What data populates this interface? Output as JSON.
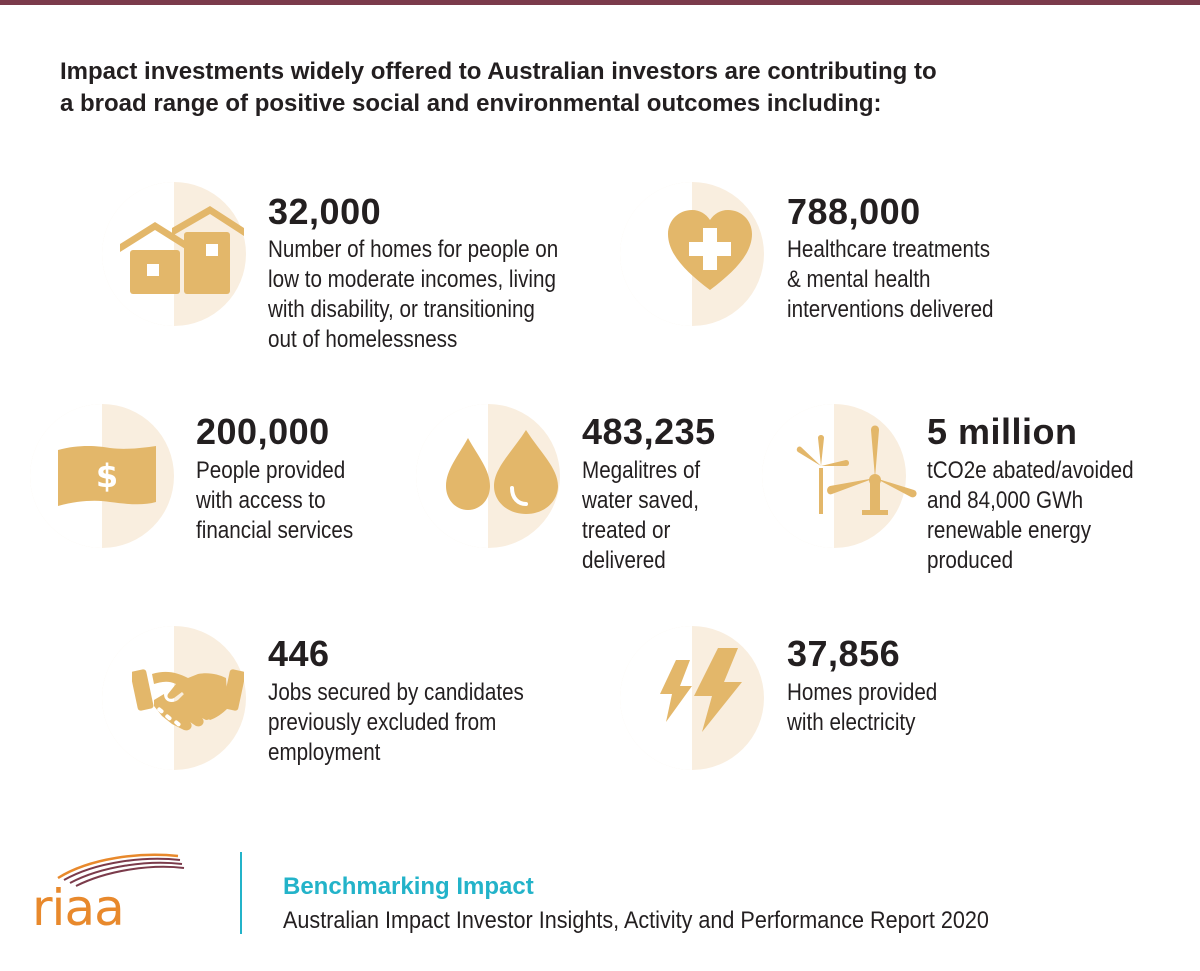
{
  "headline": {
    "line1": "Impact investments widely offered to Australian investors are contributing to",
    "line2": "a broad range of positive social and environmental outcomes including:"
  },
  "colors": {
    "accent": "#e3b76a",
    "disc": "#f9eedf",
    "bar": "#7b3b4b",
    "brand_teal": "#23b3c9",
    "brand_orange": "#e8892c"
  },
  "stats": [
    {
      "icon": "houses-icon",
      "value": "32,000",
      "lines": [
        "Number of homes for people on",
        "low to moderate incomes, living",
        "with disability, or transitioning",
        "out of homelessness"
      ]
    },
    {
      "icon": "heart-cross-icon",
      "value": "788,000",
      "lines": [
        "Healthcare treatments",
        "& mental health",
        "interventions delivered"
      ]
    },
    {
      "icon": "banknote-icon",
      "value": "200,000",
      "lines": [
        "People provided",
        "with access to",
        "financial services"
      ]
    },
    {
      "icon": "water-drops-icon",
      "value": "483,235",
      "lines": [
        "Megalitres of",
        "water saved,",
        "treated or",
        "delivered"
      ]
    },
    {
      "icon": "wind-turbine-icon",
      "value": "5 million",
      "lines": [
        "tCO2e abated/avoided",
        "and 84,000 GWh",
        "renewable energy",
        "produced"
      ]
    },
    {
      "icon": "handshake-icon",
      "value": "446",
      "lines": [
        "Jobs secured by candidates",
        "previously excluded from",
        "employment"
      ]
    },
    {
      "icon": "lightning-icon",
      "value": "37,856",
      "lines": [
        "Homes provided",
        "with electricity"
      ]
    }
  ],
  "footer": {
    "logo_text": "riaa",
    "title": "Benchmarking Impact",
    "subtitle": "Australian Impact Investor Insights, Activity and Performance Report 2020"
  }
}
